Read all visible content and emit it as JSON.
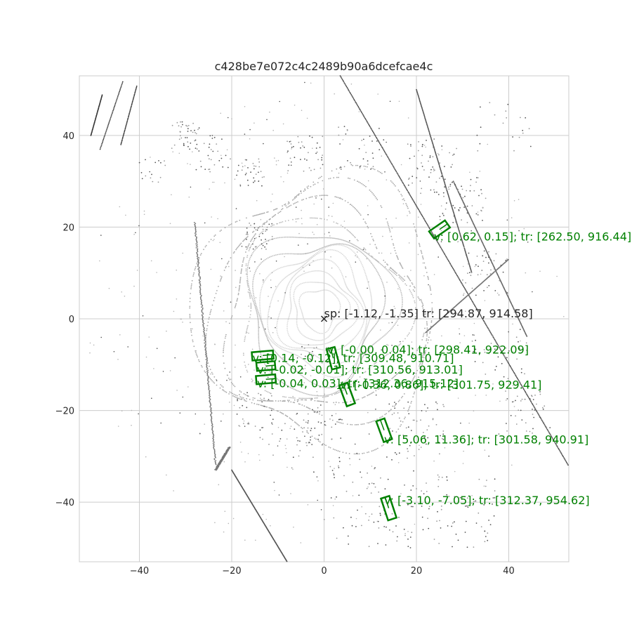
{
  "chart_data": {
    "type": "scatter",
    "title": "c428be7e072c4c2489b90a6dcefcae4c",
    "xlabel": "",
    "ylabel": "",
    "xlim": [
      -53,
      53
    ],
    "ylim": [
      -53,
      53
    ],
    "grid": true,
    "x_ticks": [
      -40,
      -20,
      0,
      20,
      40
    ],
    "y_ticks": [
      -40,
      -20,
      0,
      20,
      40
    ],
    "x_tick_labels": [
      "−40",
      "−20",
      "0",
      "20",
      "40"
    ],
    "y_tick_labels": [
      "−40",
      "−20",
      "0",
      "20",
      "40"
    ],
    "colors": {
      "box": "#008000",
      "text": "#262626",
      "grid": "#cccccc",
      "point_dark": "#1a1a1a",
      "point_light": "#d9d9d9"
    },
    "ego": {
      "x": 0,
      "y": 0,
      "marker": "x",
      "label": "sp: [-1.12, -1.35] tr: [294.87, 914.58]"
    },
    "boxes": [
      {
        "cx": 25.0,
        "cy": 19.5,
        "length": 4.2,
        "width": 1.9,
        "angle": 35,
        "label": "v: [0.62, 0.15]; tr: [262.50, 916.44]",
        "lx": 23.8,
        "ly": 18.0
      },
      {
        "cx": 2.0,
        "cy": -8.6,
        "length": 4.6,
        "width": 1.8,
        "angle": 105,
        "label": "v: [-0.00, 0.04]; tr: [298.41, 922.09]",
        "lx": 0.7,
        "ly": -6.7
      },
      {
        "cx": -13.3,
        "cy": -8.0,
        "length": 4.6,
        "width": 1.8,
        "angle": 5,
        "label": "v: [0.14, -0.12]; tr: [309.48, 910.71]",
        "lx": -15.5,
        "ly": -8.5
      },
      {
        "cx": -12.6,
        "cy": -10.3,
        "length": 4.0,
        "width": 1.8,
        "angle": 5,
        "label": "v: [-0.02, -0.01]; tr: [310.56, 913.01]",
        "lx": -14.5,
        "ly": -11.0
      },
      {
        "cx": -12.6,
        "cy": -13.2,
        "length": 4.2,
        "width": 1.8,
        "angle": 5,
        "label": "v: [-0.04, 0.03]; tr: [312.36, 915.12]",
        "lx": -14.5,
        "ly": -14.0
      },
      {
        "cx": 5.0,
        "cy": -16.5,
        "length": 4.8,
        "width": 1.9,
        "angle": 110,
        "label": "v: [-0.36, 0.86]; tr: [301.75, 929.41]",
        "lx": 3.5,
        "ly": -14.3
      },
      {
        "cx": 13.0,
        "cy": -24.3,
        "length": 4.8,
        "width": 1.9,
        "angle": 110,
        "label": "v: [5.06, 11.36]; tr: [301.58, 940.91]",
        "lx": 13.0,
        "ly": -26.3
      },
      {
        "cx": 14.0,
        "cy": -41.3,
        "length": 5.0,
        "width": 1.9,
        "angle": 108,
        "label": "v: [-3.10, -7.05]; tr: [312.37, 954.62]",
        "lx": 13.0,
        "ly": -39.5
      }
    ]
  }
}
